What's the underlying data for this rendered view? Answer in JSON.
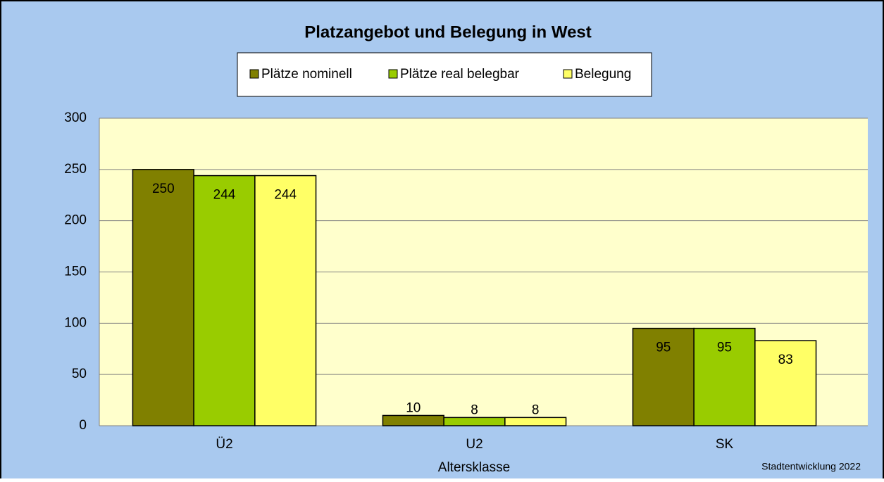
{
  "chart_data": {
    "type": "bar",
    "title": "Platzangebot und Belegung in West",
    "x_label": "Altersklasse",
    "annotation": "Stadtentwicklung 2022",
    "categories": [
      "Ü2",
      "U2",
      "SK"
    ],
    "series": [
      {
        "name": "Plätze nominell",
        "color": "#808000",
        "values": [
          250,
          10,
          95
        ]
      },
      {
        "name": "Plätze real belegbar",
        "color": "#99cc00",
        "values": [
          244,
          8,
          95
        ]
      },
      {
        "name": "Belegung",
        "color": "#ffff66",
        "values": [
          244,
          8,
          83
        ]
      }
    ],
    "ylim": [
      0,
      300
    ],
    "yticks": [
      0,
      50,
      100,
      150,
      200,
      250,
      300
    ],
    "grid": true,
    "legend": "top"
  }
}
